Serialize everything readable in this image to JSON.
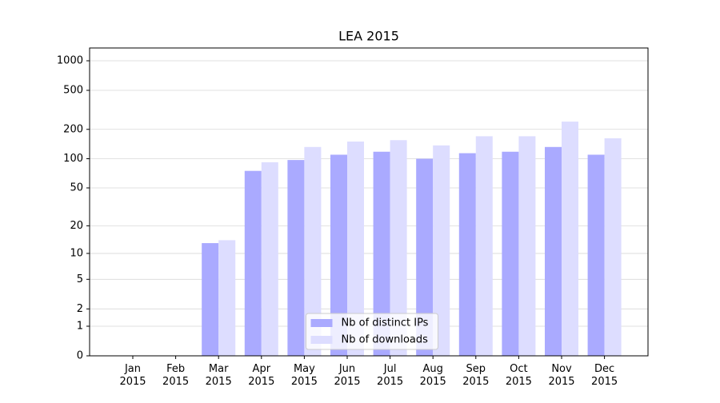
{
  "chart_data": {
    "type": "bar",
    "title": "LEA 2015",
    "categories": [
      "Jan 2015",
      "Feb 2015",
      "Mar 2015",
      "Apr 2015",
      "May 2015",
      "Jun 2015",
      "Jul 2015",
      "Aug 2015",
      "Sep 2015",
      "Oct 2015",
      "Nov 2015",
      "Dec 2015"
    ],
    "series": [
      {
        "name": "Nb of distinct IPs",
        "color": "#aaaaff",
        "values": [
          0,
          0,
          13,
          75,
          97,
          110,
          118,
          100,
          114,
          118,
          132,
          110
        ]
      },
      {
        "name": "Nb of downloads",
        "color": "#ddddff",
        "values": [
          0,
          0,
          14,
          92,
          132,
          150,
          155,
          137,
          170,
          170,
          240,
          162
        ]
      }
    ],
    "yscale": "log1p",
    "ylim": [
      0,
      1350
    ],
    "yticks": [
      0,
      1,
      2,
      5,
      10,
      20,
      50,
      100,
      200,
      500,
      1000
    ],
    "grid": true,
    "legend": "lower center"
  }
}
